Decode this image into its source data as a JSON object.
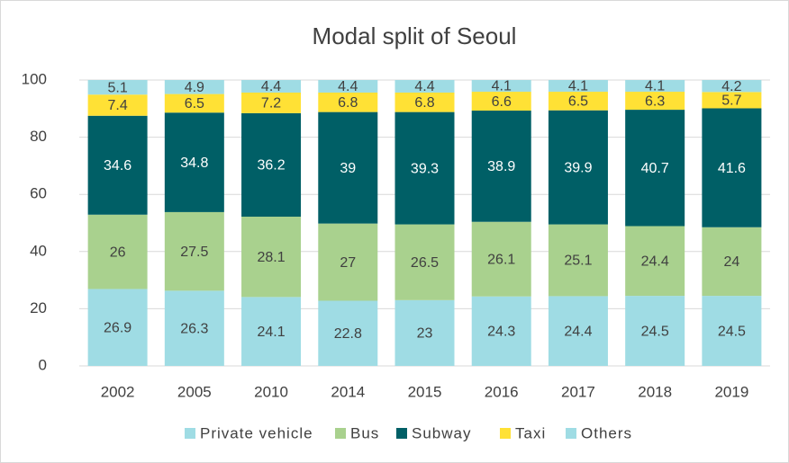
{
  "chart_data": {
    "type": "bar",
    "stacked": true,
    "title": "Modal split of Seoul",
    "categories": [
      "2002",
      "2005",
      "2010",
      "2014",
      "2015",
      "2016",
      "2017",
      "2018",
      "2019"
    ],
    "series": [
      {
        "name": "Private vehicle",
        "color": "#9fdce4",
        "values": [
          26.9,
          26.3,
          24.1,
          22.8,
          23,
          24.3,
          24.4,
          24.5,
          24.5
        ]
      },
      {
        "name": "Bus",
        "color": "#a9d18e",
        "values": [
          26,
          27.5,
          28.1,
          27,
          26.5,
          26.1,
          25.1,
          24.4,
          24
        ]
      },
      {
        "name": "Subway",
        "color": "#005f66",
        "values": [
          34.6,
          34.8,
          36.2,
          39,
          39.3,
          38.9,
          39.9,
          40.7,
          41.6
        ]
      },
      {
        "name": "Taxi",
        "color": "#ffe135",
        "values": [
          7.4,
          6.5,
          7.2,
          6.8,
          6.8,
          6.6,
          6.5,
          6.3,
          5.7
        ]
      },
      {
        "name": "Others",
        "color": "#9fdce4",
        "values": [
          5.1,
          4.9,
          4.4,
          4.4,
          4.4,
          4.1,
          4.1,
          4.1,
          4.2
        ]
      }
    ],
    "ylim": [
      0,
      100
    ],
    "yticks": [
      0,
      20,
      40,
      60,
      80,
      100
    ],
    "legend": "bottom"
  }
}
